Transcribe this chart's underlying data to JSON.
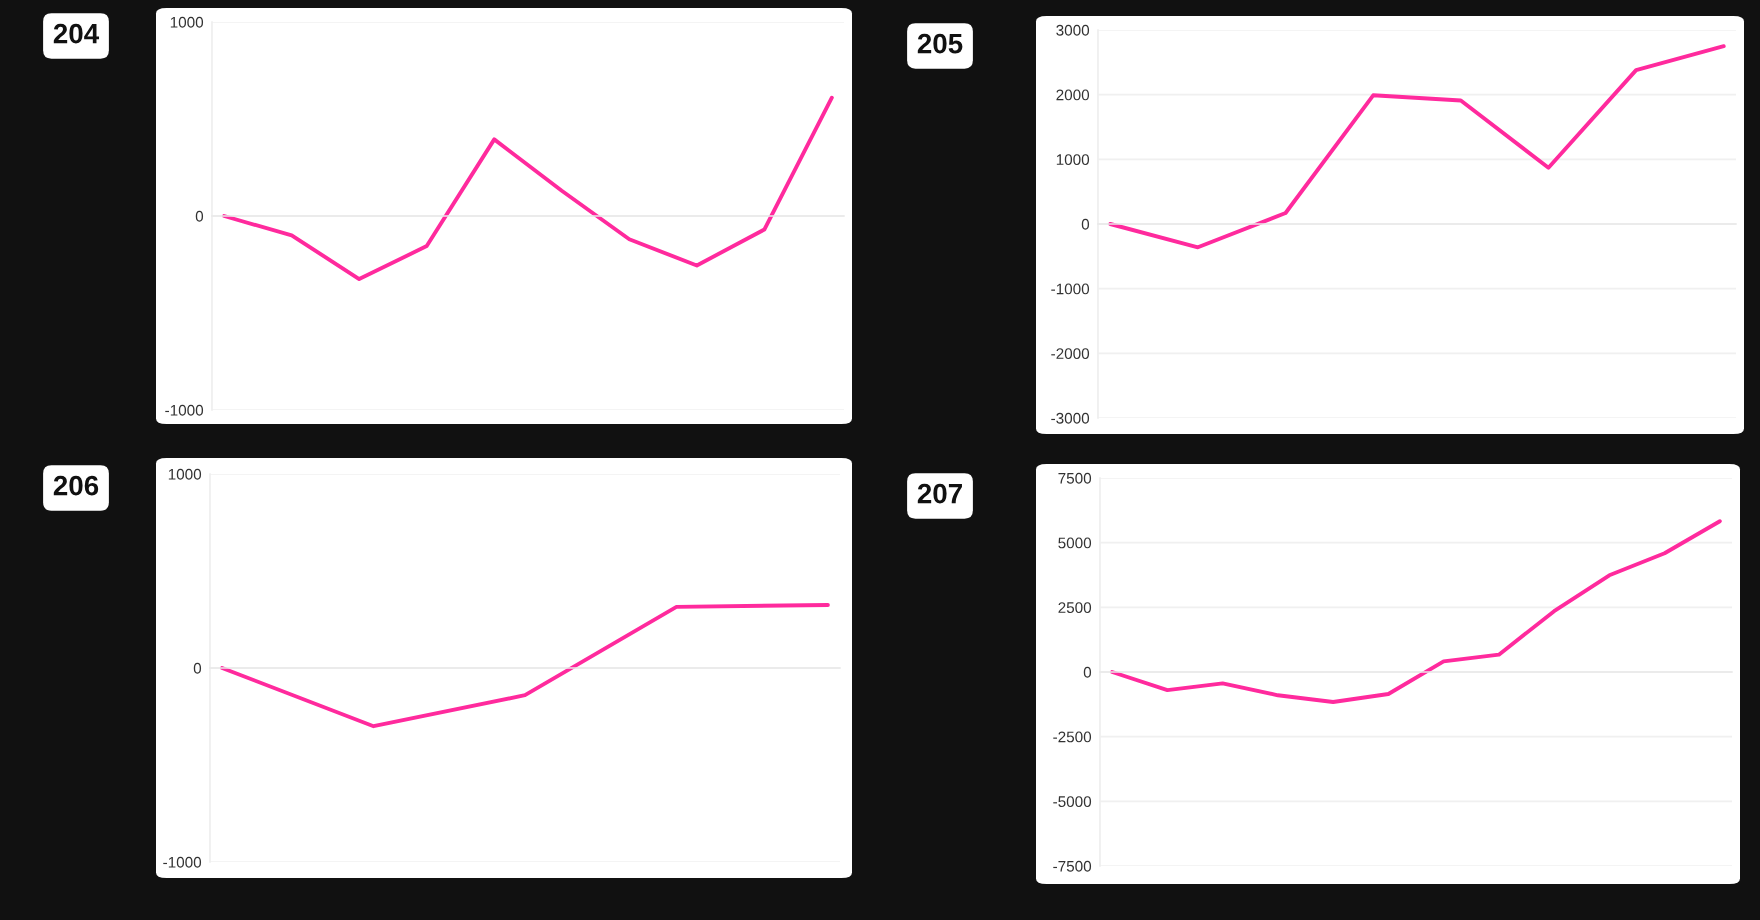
{
  "chart_data": [
    {
      "type": "line",
      "title": "204",
      "categories": [
        null,
        null,
        null,
        null,
        null,
        null,
        null,
        null,
        null,
        null
      ],
      "series": [
        {
          "color": "#ff2a9d",
          "values": [
            0,
            -100,
            -325,
            -155,
            395,
            130,
            -120,
            -255,
            -70,
            610
          ]
        }
      ],
      "ylim": [
        -1000,
        1000
      ],
      "yticks": [
        -1000,
        0,
        1000
      ],
      "grid": "y",
      "tick_labels": "y"
    },
    {
      "type": "line",
      "title": "205",
      "categories": [
        null,
        null,
        null,
        null,
        null,
        null,
        null,
        null
      ],
      "series": [
        {
          "color": "#ff2a9d",
          "values": [
            0,
            -360,
            170,
            1990,
            1910,
            870,
            2380,
            2750
          ]
        }
      ],
      "ylim": [
        -3000,
        3000
      ],
      "yticks": [
        -3000,
        -2000,
        -1000,
        0,
        1000,
        2000,
        3000
      ],
      "grid": "y",
      "tick_labels": "y"
    },
    {
      "type": "line",
      "title": "206",
      "categories": [
        null,
        null,
        null,
        null,
        null
      ],
      "series": [
        {
          "color": "#ff2a9d",
          "values": [
            0,
            -300,
            -140,
            315,
            325
          ]
        }
      ],
      "ylim": [
        -1000,
        1000
      ],
      "yticks": [
        -1000,
        0,
        1000
      ],
      "grid": "y",
      "tick_labels": "y"
    },
    {
      "type": "line",
      "title": "207",
      "categories": [
        null,
        null,
        null,
        null,
        null,
        null,
        null,
        null,
        null,
        null,
        null,
        null
      ],
      "series": [
        {
          "color": "#ff2a9d",
          "values": [
            0,
            -700,
            -440,
            -900,
            -1160,
            -850,
            410,
            670,
            2350,
            3740,
            4590,
            5830
          ]
        }
      ],
      "ylim": [
        -7500,
        7500
      ],
      "yticks": [
        -7500,
        -5000,
        -2500,
        0,
        2500,
        5000,
        7500
      ],
      "grid": "y",
      "tick_labels": "y"
    }
  ]
}
